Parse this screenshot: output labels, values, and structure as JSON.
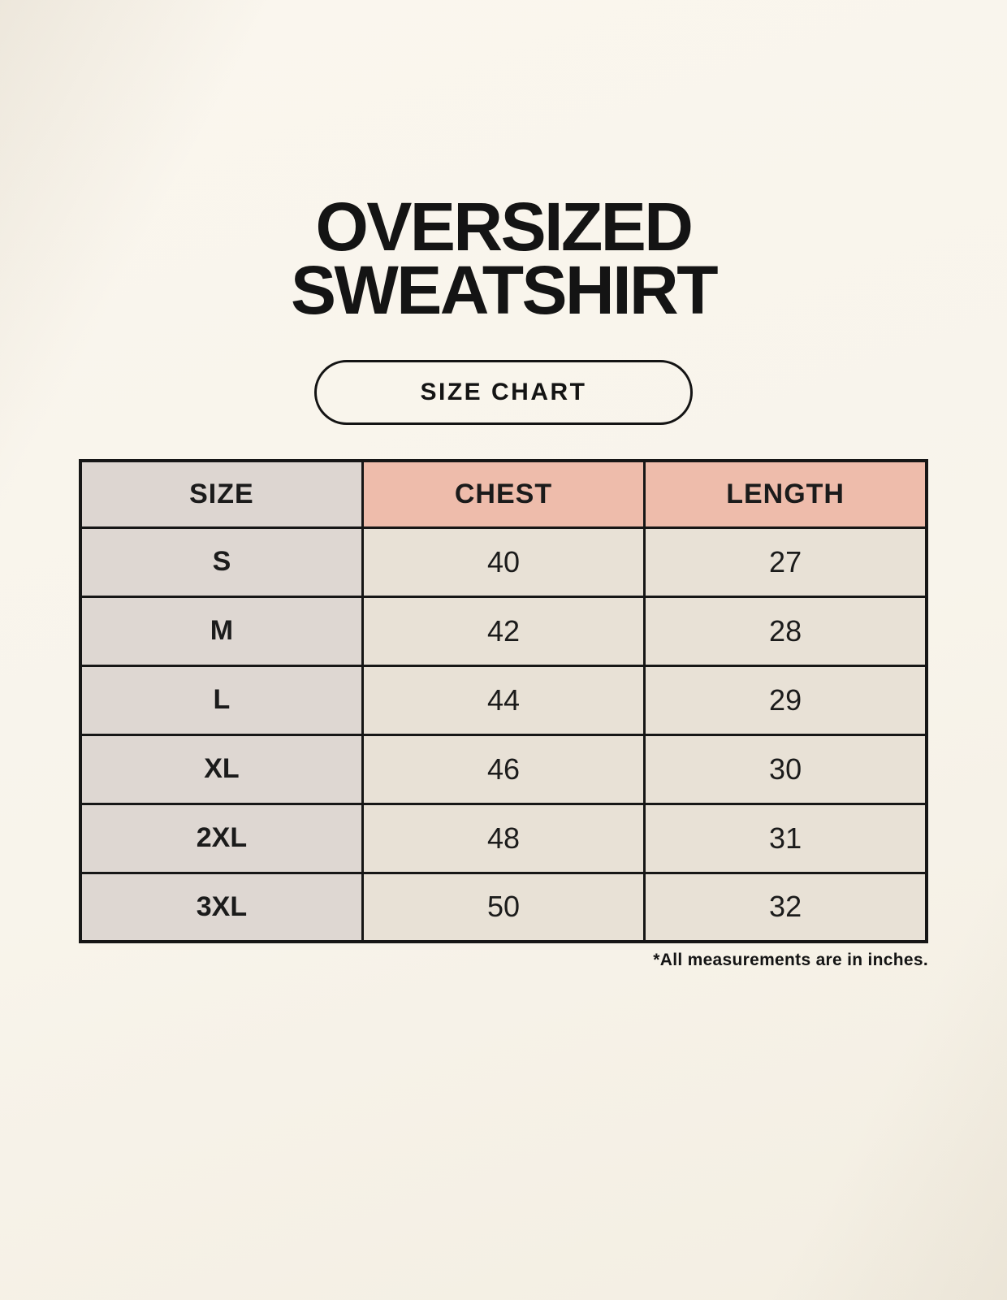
{
  "header": {
    "title_line1": "OVERSIZED",
    "title_line2": "SWEATSHIRT",
    "badge_label": "SIZE CHART"
  },
  "table": {
    "columns": [
      "SIZE",
      "CHEST",
      "LENGTH"
    ],
    "rows": [
      {
        "size": "S",
        "chest": "40",
        "length": "27"
      },
      {
        "size": "M",
        "chest": "42",
        "length": "28"
      },
      {
        "size": "L",
        "chest": "44",
        "length": "29"
      },
      {
        "size": "XL",
        "chest": "46",
        "length": "30"
      },
      {
        "size": "2XL",
        "chest": "48",
        "length": "31"
      },
      {
        "size": "3XL",
        "chest": "50",
        "length": "32"
      }
    ],
    "footnote": "*All measurements are in inches."
  },
  "chart_data": {
    "type": "table",
    "title": "OVERSIZED SWEATSHIRT — SIZE CHART",
    "columns": [
      "SIZE",
      "CHEST",
      "LENGTH"
    ],
    "rows": [
      [
        "S",
        40,
        27
      ],
      [
        "M",
        42,
        28
      ],
      [
        "L",
        44,
        29
      ],
      [
        "XL",
        46,
        30
      ],
      [
        "2XL",
        48,
        31
      ],
      [
        "3XL",
        50,
        32
      ]
    ],
    "units": "inches"
  },
  "colors": {
    "background": "#F8F4EB",
    "header_label_bg": "#DDD6D1",
    "header_measure_bg": "#EEBCAB",
    "row_label_bg": "#DED7D2",
    "value_cell_bg": "#E8E1D6",
    "border": "#161616",
    "text": "#1B1B1B"
  }
}
